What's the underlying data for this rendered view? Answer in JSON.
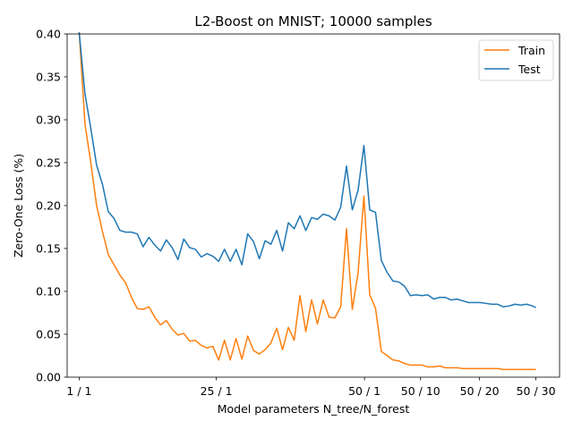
{
  "chart_data": {
    "type": "line",
    "title": "L2-Boost on MNIST; 10000 samples",
    "xlabel": "Model parameters N_tree/N_forest",
    "ylabel": "Zero-One Loss (%)",
    "ylim": [
      0,
      0.4
    ],
    "yticks": [
      0.0,
      0.05,
      0.1,
      0.15,
      0.2,
      0.25,
      0.3,
      0.35,
      0.4
    ],
    "ytick_labels": [
      "0.00",
      "0.05",
      "0.10",
      "0.15",
      "0.20",
      "0.25",
      "0.30",
      "0.35",
      "0.40"
    ],
    "xlim": [
      -4.14,
      165.34
    ],
    "xticks": [
      0,
      47.2,
      98.2,
      117.5,
      137.8,
      157.2
    ],
    "xtick_labels": [
      "1 / 1",
      "25 / 1",
      "50 / 1",
      "50 / 10",
      "50 / 20",
      "50 / 30"
    ],
    "x_scale": "piecewise: N_tree/N_forest",
    "grid": false,
    "legend_position": "top-right",
    "series": [
      {
        "name": "Train",
        "color": "#ff7f0e",
        "points": [
          [
            0,
            0.402
          ],
          [
            2,
            0.295
          ],
          [
            4,
            0.25
          ],
          [
            6,
            0.2
          ],
          [
            8,
            0.17
          ],
          [
            10,
            0.143
          ],
          [
            12,
            0.131
          ],
          [
            14,
            0.119
          ],
          [
            16,
            0.11
          ],
          [
            18,
            0.093
          ],
          [
            20,
            0.08
          ],
          [
            22,
            0.079
          ],
          [
            24,
            0.082
          ],
          [
            26,
            0.07
          ],
          [
            28,
            0.061
          ],
          [
            30,
            0.066
          ],
          [
            32,
            0.056
          ],
          [
            34,
            0.049
          ],
          [
            36,
            0.051
          ],
          [
            38,
            0.042
          ],
          [
            40,
            0.043
          ],
          [
            42,
            0.037
          ],
          [
            44,
            0.034
          ],
          [
            46,
            0.036
          ],
          [
            48,
            0.02
          ],
          [
            50,
            0.043
          ],
          [
            52,
            0.02
          ],
          [
            54,
            0.045
          ],
          [
            56,
            0.021
          ],
          [
            58,
            0.048
          ],
          [
            60,
            0.031
          ],
          [
            62,
            0.027
          ],
          [
            64,
            0.032
          ],
          [
            66,
            0.04
          ],
          [
            68,
            0.057
          ],
          [
            70,
            0.032
          ],
          [
            72,
            0.058
          ],
          [
            74,
            0.043
          ],
          [
            76,
            0.095
          ],
          [
            78,
            0.053
          ],
          [
            80,
            0.09
          ],
          [
            82,
            0.062
          ],
          [
            84,
            0.09
          ],
          [
            86,
            0.07
          ],
          [
            88,
            0.069
          ],
          [
            90,
            0.082
          ],
          [
            92,
            0.173
          ],
          [
            94,
            0.079
          ],
          [
            96,
            0.122
          ],
          [
            98,
            0.211
          ],
          [
            100,
            0.096
          ],
          [
            102,
            0.08
          ],
          [
            104,
            0.03
          ],
          [
            106,
            0.025
          ],
          [
            108,
            0.02
          ],
          [
            110,
            0.019
          ],
          [
            112,
            0.016
          ],
          [
            114,
            0.014
          ],
          [
            116,
            0.014
          ],
          [
            118,
            0.014
          ],
          [
            120,
            0.012
          ],
          [
            122,
            0.012
          ],
          [
            124,
            0.013
          ],
          [
            126,
            0.011
          ],
          [
            128,
            0.011
          ],
          [
            130,
            0.011
          ],
          [
            132,
            0.01
          ],
          [
            134,
            0.01
          ],
          [
            136,
            0.01
          ],
          [
            138,
            0.01
          ],
          [
            140,
            0.01
          ],
          [
            142,
            0.01
          ],
          [
            144,
            0.01
          ],
          [
            146,
            0.009
          ],
          [
            148,
            0.009
          ],
          [
            150,
            0.009
          ],
          [
            152,
            0.009
          ],
          [
            154,
            0.009
          ],
          [
            156,
            0.009
          ],
          [
            157.2,
            0.009
          ]
        ]
      },
      {
        "name": "Test",
        "color": "#1f77b4",
        "points": [
          [
            0,
            0.402
          ],
          [
            2,
            0.33
          ],
          [
            4,
            0.29
          ],
          [
            6,
            0.247
          ],
          [
            8,
            0.225
          ],
          [
            10,
            0.193
          ],
          [
            12,
            0.185
          ],
          [
            14,
            0.171
          ],
          [
            16,
            0.169
          ],
          [
            18,
            0.169
          ],
          [
            20,
            0.167
          ],
          [
            22,
            0.152
          ],
          [
            24,
            0.163
          ],
          [
            26,
            0.154
          ],
          [
            28,
            0.147
          ],
          [
            30,
            0.16
          ],
          [
            32,
            0.151
          ],
          [
            34,
            0.137
          ],
          [
            36,
            0.161
          ],
          [
            38,
            0.151
          ],
          [
            40,
            0.149
          ],
          [
            42,
            0.14
          ],
          [
            44,
            0.144
          ],
          [
            46,
            0.141
          ],
          [
            48,
            0.135
          ],
          [
            50,
            0.149
          ],
          [
            52,
            0.135
          ],
          [
            54,
            0.149
          ],
          [
            56,
            0.131
          ],
          [
            58,
            0.167
          ],
          [
            60,
            0.158
          ],
          [
            62,
            0.138
          ],
          [
            64,
            0.159
          ],
          [
            66,
            0.155
          ],
          [
            68,
            0.171
          ],
          [
            70,
            0.147
          ],
          [
            72,
            0.18
          ],
          [
            74,
            0.173
          ],
          [
            76,
            0.188
          ],
          [
            78,
            0.171
          ],
          [
            80,
            0.186
          ],
          [
            82,
            0.184
          ],
          [
            84,
            0.19
          ],
          [
            86,
            0.188
          ],
          [
            88,
            0.183
          ],
          [
            90,
            0.198
          ],
          [
            92,
            0.246
          ],
          [
            94,
            0.195
          ],
          [
            96,
            0.218
          ],
          [
            98,
            0.27
          ],
          [
            100,
            0.195
          ],
          [
            102,
            0.192
          ],
          [
            104,
            0.136
          ],
          [
            106,
            0.122
          ],
          [
            108,
            0.112
          ],
          [
            110,
            0.111
          ],
          [
            112,
            0.106
          ],
          [
            114,
            0.095
          ],
          [
            116,
            0.096
          ],
          [
            118,
            0.095
          ],
          [
            120,
            0.096
          ],
          [
            122,
            0.091
          ],
          [
            124,
            0.093
          ],
          [
            126,
            0.093
          ],
          [
            128,
            0.09
          ],
          [
            130,
            0.091
          ],
          [
            132,
            0.089
          ],
          [
            134,
            0.087
          ],
          [
            136,
            0.087
          ],
          [
            138,
            0.087
          ],
          [
            140,
            0.086
          ],
          [
            142,
            0.085
          ],
          [
            144,
            0.085
          ],
          [
            146,
            0.082
          ],
          [
            148,
            0.083
          ],
          [
            150,
            0.085
          ],
          [
            152,
            0.084
          ],
          [
            154,
            0.085
          ],
          [
            156,
            0.083
          ],
          [
            157.2,
            0.081
          ]
        ]
      }
    ]
  }
}
